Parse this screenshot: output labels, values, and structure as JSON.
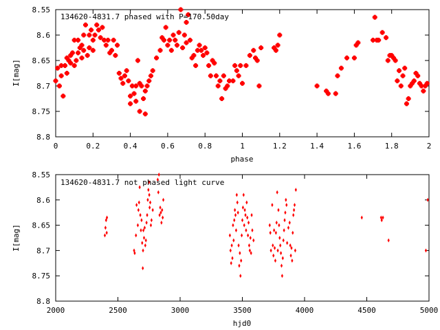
{
  "colors": {
    "marker": "#ff0000",
    "axis": "#000000",
    "background": "#ffffff"
  },
  "chart_data": [
    {
      "type": "scatter",
      "title": "134620-4831.7 phased with P=170.50day",
      "xlabel": "phase",
      "ylabel": "I[mag]",
      "xlim": [
        0,
        2
      ],
      "ylim": [
        8.55,
        8.8
      ],
      "y_inverted": true,
      "grid": false,
      "legend": "none",
      "marker": "filled square-cross",
      "xticks": [
        "0",
        "0.2",
        "0.4",
        "0.6",
        "0.8",
        "1",
        "1.2",
        "1.4",
        "1.6",
        "1.8",
        "2"
      ],
      "yticks": [
        "8.55",
        "8.6",
        "8.65",
        "8.7",
        "8.75",
        "8.8"
      ],
      "xtick_values": [
        0,
        0.2,
        0.4,
        0.6,
        0.8,
        1.0,
        1.2,
        1.4,
        1.6,
        1.8,
        2.0
      ],
      "ytick_values": [
        8.55,
        8.6,
        8.65,
        8.7,
        8.75,
        8.8
      ],
      "points": [
        [
          0.0,
          8.69
        ],
        [
          0.01,
          8.665
        ],
        [
          0.02,
          8.7
        ],
        [
          0.03,
          8.68
        ],
        [
          0.03,
          8.66
        ],
        [
          0.04,
          8.72
        ],
        [
          0.05,
          8.66
        ],
        [
          0.06,
          8.645
        ],
        [
          0.06,
          8.675
        ],
        [
          0.07,
          8.65
        ],
        [
          0.08,
          8.64
        ],
        [
          0.08,
          8.655
        ],
        [
          0.09,
          8.635
        ],
        [
          0.1,
          8.66
        ],
        [
          0.1,
          8.61
        ],
        [
          0.11,
          8.65
        ],
        [
          0.12,
          8.61
        ],
        [
          0.12,
          8.635
        ],
        [
          0.13,
          8.625
        ],
        [
          0.14,
          8.62
        ],
        [
          0.14,
          8.645
        ],
        [
          0.15,
          8.6
        ],
        [
          0.15,
          8.63
        ],
        [
          0.16,
          8.58
        ],
        [
          0.17,
          8.64
        ],
        [
          0.18,
          8.6
        ],
        [
          0.18,
          8.625
        ],
        [
          0.19,
          8.59
        ],
        [
          0.2,
          8.61
        ],
        [
          0.2,
          8.63
        ],
        [
          0.21,
          8.6
        ],
        [
          0.22,
          8.58
        ],
        [
          0.23,
          8.59
        ],
        [
          0.24,
          8.605
        ],
        [
          0.25,
          8.585
        ],
        [
          0.26,
          8.61
        ],
        [
          0.27,
          8.62
        ],
        [
          0.28,
          8.61
        ],
        [
          0.29,
          8.635
        ],
        [
          0.3,
          8.63
        ],
        [
          0.31,
          8.61
        ],
        [
          0.32,
          8.64
        ],
        [
          0.33,
          8.62
        ],
        [
          0.34,
          8.675
        ],
        [
          0.35,
          8.685
        ],
        [
          0.36,
          8.695
        ],
        [
          0.37,
          8.68
        ],
        [
          0.38,
          8.67
        ],
        [
          0.39,
          8.69
        ],
        [
          0.4,
          8.72
        ],
        [
          0.4,
          8.735
        ],
        [
          0.41,
          8.7
        ],
        [
          0.42,
          8.715
        ],
        [
          0.43,
          8.73
        ],
        [
          0.43,
          8.7
        ],
        [
          0.44,
          8.65
        ],
        [
          0.45,
          8.695
        ],
        [
          0.45,
          8.75
        ],
        [
          0.46,
          8.7
        ],
        [
          0.47,
          8.725
        ],
        [
          0.48,
          8.71
        ],
        [
          0.48,
          8.755
        ],
        [
          0.49,
          8.7
        ],
        [
          0.5,
          8.69
        ],
        [
          0.51,
          8.68
        ],
        [
          0.52,
          8.67
        ],
        [
          0.54,
          8.645
        ],
        [
          0.56,
          8.63
        ],
        [
          0.57,
          8.605
        ],
        [
          0.58,
          8.61
        ],
        [
          0.59,
          8.585
        ],
        [
          0.6,
          8.62
        ],
        [
          0.61,
          8.61
        ],
        [
          0.62,
          8.63
        ],
        [
          0.63,
          8.6
        ],
        [
          0.64,
          8.61
        ],
        [
          0.65,
          8.62
        ],
        [
          0.66,
          8.595
        ],
        [
          0.67,
          8.55
        ],
        [
          0.68,
          8.625
        ],
        [
          0.69,
          8.6
        ],
        [
          0.7,
          8.575
        ],
        [
          0.7,
          8.615
        ],
        [
          0.71,
          8.56
        ],
        [
          0.72,
          8.61
        ],
        [
          0.73,
          8.645
        ],
        [
          0.74,
          8.64
        ],
        [
          0.75,
          8.66
        ],
        [
          0.76,
          8.63
        ],
        [
          0.77,
          8.62
        ],
        [
          0.78,
          8.63
        ],
        [
          0.79,
          8.64
        ],
        [
          0.8,
          8.625
        ],
        [
          0.81,
          8.635
        ],
        [
          0.82,
          8.66
        ],
        [
          0.83,
          8.68
        ],
        [
          0.84,
          8.65
        ],
        [
          0.85,
          8.655
        ],
        [
          0.86,
          8.68
        ],
        [
          0.87,
          8.7
        ],
        [
          0.88,
          8.69
        ],
        [
          0.89,
          8.725
        ],
        [
          0.9,
          8.68
        ],
        [
          0.91,
          8.705
        ],
        [
          0.92,
          8.7
        ],
        [
          0.93,
          8.69
        ],
        [
          0.95,
          8.69
        ],
        [
          0.96,
          8.66
        ],
        [
          0.97,
          8.67
        ],
        [
          0.98,
          8.68
        ],
        [
          0.99,
          8.66
        ],
        [
          1.0,
          8.695
        ],
        [
          1.02,
          8.66
        ],
        [
          1.04,
          8.64
        ],
        [
          1.06,
          8.63
        ],
        [
          1.07,
          8.645
        ],
        [
          1.08,
          8.65
        ],
        [
          1.09,
          8.7
        ],
        [
          1.1,
          8.625
        ],
        [
          1.17,
          8.625
        ],
        [
          1.18,
          8.63
        ],
        [
          1.19,
          8.62
        ],
        [
          1.2,
          8.6
        ],
        [
          1.4,
          8.7
        ],
        [
          1.45,
          8.71
        ],
        [
          1.46,
          8.715
        ],
        [
          1.5,
          8.715
        ],
        [
          1.51,
          8.68
        ],
        [
          1.53,
          8.665
        ],
        [
          1.56,
          8.645
        ],
        [
          1.6,
          8.645
        ],
        [
          1.61,
          8.62
        ],
        [
          1.62,
          8.615
        ],
        [
          1.7,
          8.61
        ],
        [
          1.71,
          8.565
        ],
        [
          1.72,
          8.61
        ],
        [
          1.73,
          8.61
        ],
        [
          1.75,
          8.595
        ],
        [
          1.77,
          8.605
        ],
        [
          1.78,
          8.65
        ],
        [
          1.79,
          8.64
        ],
        [
          1.8,
          8.64
        ],
        [
          1.81,
          8.645
        ],
        [
          1.82,
          8.65
        ],
        [
          1.83,
          8.69
        ],
        [
          1.84,
          8.67
        ],
        [
          1.85,
          8.7
        ],
        [
          1.86,
          8.68
        ],
        [
          1.87,
          8.665
        ],
        [
          1.88,
          8.735
        ],
        [
          1.89,
          8.725
        ],
        [
          1.9,
          8.7
        ],
        [
          1.91,
          8.695
        ],
        [
          1.92,
          8.69
        ],
        [
          1.93,
          8.675
        ],
        [
          1.94,
          8.68
        ],
        [
          1.95,
          8.695
        ],
        [
          1.96,
          8.7
        ],
        [
          1.97,
          8.71
        ],
        [
          1.98,
          8.7
        ],
        [
          1.99,
          8.695
        ]
      ]
    },
    {
      "type": "scatter",
      "title": "134620-4831.7 not phased light curve",
      "xlabel": "hjd0",
      "ylabel": "I[mag]",
      "xlim": [
        2000,
        5000
      ],
      "ylim": [
        8.55,
        8.8
      ],
      "y_inverted": true,
      "grid": false,
      "legend": "none",
      "marker": "small diamond",
      "xticks": [
        "2000",
        "2500",
        "3000",
        "3500",
        "4000",
        "4500",
        "5000"
      ],
      "yticks": [
        "8.55",
        "8.6",
        "8.65",
        "8.7",
        "8.75",
        "8.8"
      ],
      "xtick_values": [
        2000,
        2500,
        3000,
        3500,
        4000,
        4500,
        5000
      ],
      "ytick_values": [
        8.55,
        8.6,
        8.65,
        8.7,
        8.75,
        8.8
      ],
      "points": [
        [
          2395,
          8.67
        ],
        [
          2400,
          8.655
        ],
        [
          2405,
          8.64
        ],
        [
          2410,
          8.665
        ],
        [
          2412,
          8.635
        ],
        [
          2630,
          8.7
        ],
        [
          2635,
          8.705
        ],
        [
          2645,
          8.67
        ],
        [
          2650,
          8.61
        ],
        [
          2660,
          8.65
        ],
        [
          2665,
          8.62
        ],
        [
          2670,
          8.605
        ],
        [
          2675,
          8.575
        ],
        [
          2680,
          8.63
        ],
        [
          2685,
          8.66
        ],
        [
          2690,
          8.64
        ],
        [
          2695,
          8.685
        ],
        [
          2700,
          8.735
        ],
        [
          2702,
          8.7
        ],
        [
          2705,
          8.66
        ],
        [
          2710,
          8.675
        ],
        [
          2715,
          8.655
        ],
        [
          2720,
          8.69
        ],
        [
          2725,
          8.68
        ],
        [
          2730,
          8.645
        ],
        [
          2735,
          8.63
        ],
        [
          2740,
          8.6
        ],
        [
          2745,
          8.58
        ],
        [
          2750,
          8.565
        ],
        [
          2752,
          8.59
        ],
        [
          2755,
          8.615
        ],
        [
          2760,
          8.605
        ],
        [
          2765,
          8.65
        ],
        [
          2770,
          8.64
        ],
        [
          2780,
          8.62
        ],
        [
          2820,
          8.56
        ],
        [
          2825,
          8.585
        ],
        [
          2830,
          8.55
        ],
        [
          2835,
          8.63
        ],
        [
          2840,
          8.615
        ],
        [
          2845,
          8.625
        ],
        [
          2850,
          8.645
        ],
        [
          2855,
          8.62
        ],
        [
          2860,
          8.635
        ],
        [
          2865,
          8.6
        ],
        [
          3400,
          8.67
        ],
        [
          3405,
          8.7
        ],
        [
          3410,
          8.725
        ],
        [
          3415,
          8.69
        ],
        [
          3420,
          8.715
        ],
        [
          3425,
          8.65
        ],
        [
          3430,
          8.68
        ],
        [
          3435,
          8.64
        ],
        [
          3440,
          8.62
        ],
        [
          3445,
          8.63
        ],
        [
          3450,
          8.66
        ],
        [
          3455,
          8.59
        ],
        [
          3460,
          8.605
        ],
        [
          3465,
          8.625
        ],
        [
          3470,
          8.69
        ],
        [
          3475,
          8.73
        ],
        [
          3480,
          8.705
        ],
        [
          3485,
          8.75
        ],
        [
          3490,
          8.72
        ],
        [
          3495,
          8.67
        ],
        [
          3500,
          8.64
        ],
        [
          3505,
          8.615
        ],
        [
          3510,
          8.59
        ],
        [
          3515,
          8.65
        ],
        [
          3520,
          8.62
        ],
        [
          3525,
          8.63
        ],
        [
          3530,
          8.66
        ],
        [
          3535,
          8.605
        ],
        [
          3540,
          8.635
        ],
        [
          3545,
          8.67
        ],
        [
          3550,
          8.645
        ],
        [
          3555,
          8.69
        ],
        [
          3560,
          8.7
        ],
        [
          3565,
          8.675
        ],
        [
          3570,
          8.705
        ],
        [
          3575,
          8.63
        ],
        [
          3580,
          8.66
        ],
        [
          3590,
          8.68
        ],
        [
          3720,
          8.65
        ],
        [
          3725,
          8.665
        ],
        [
          3730,
          8.7
        ],
        [
          3740,
          8.61
        ],
        [
          3745,
          8.69
        ],
        [
          3750,
          8.71
        ],
        [
          3755,
          8.66
        ],
        [
          3760,
          8.695
        ],
        [
          3765,
          8.72
        ],
        [
          3770,
          8.665
        ],
        [
          3775,
          8.645
        ],
        [
          3780,
          8.585
        ],
        [
          3785,
          8.7
        ],
        [
          3790,
          8.62
        ],
        [
          3795,
          8.65
        ],
        [
          3800,
          8.675
        ],
        [
          3805,
          8.69
        ],
        [
          3810,
          8.705
        ],
        [
          3815,
          8.73
        ],
        [
          3820,
          8.75
        ],
        [
          3825,
          8.715
        ],
        [
          3830,
          8.68
        ],
        [
          3835,
          8.66
        ],
        [
          3840,
          8.64
        ],
        [
          3845,
          8.625
        ],
        [
          3850,
          8.6
        ],
        [
          3855,
          8.61
        ],
        [
          3860,
          8.685
        ],
        [
          3870,
          8.655
        ],
        [
          3880,
          8.645
        ],
        [
          3885,
          8.69
        ],
        [
          3890,
          8.71
        ],
        [
          3895,
          8.695
        ],
        [
          3900,
          8.72
        ],
        [
          3905,
          8.665
        ],
        [
          3910,
          8.63
        ],
        [
          3915,
          8.62
        ],
        [
          3920,
          8.61
        ],
        [
          3925,
          8.7
        ],
        [
          3930,
          8.58
        ],
        [
          4460,
          8.635
        ],
        [
          4615,
          8.635
        ],
        [
          4620,
          8.64
        ],
        [
          4630,
          8.635
        ],
        [
          4675,
          8.68
        ],
        [
          4975,
          8.7
        ],
        [
          4990,
          8.6
        ]
      ]
    }
  ]
}
